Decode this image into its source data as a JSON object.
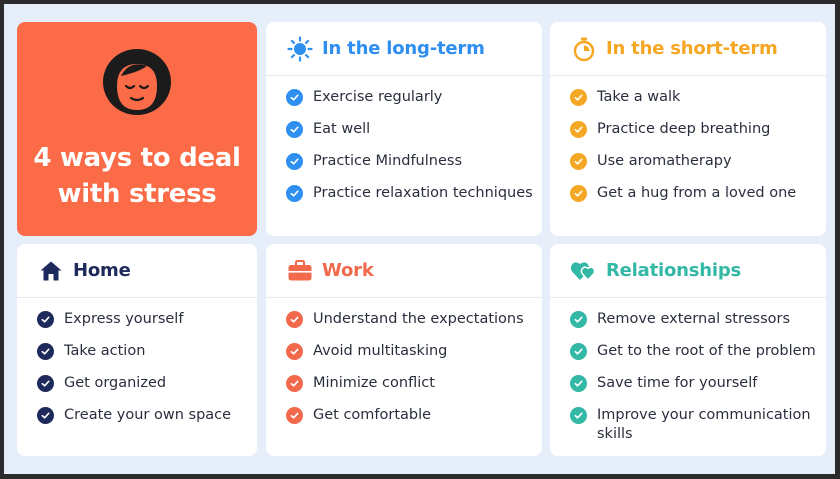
{
  "hero": {
    "title_line1": "4 ways to deal",
    "title_line2": "with stress"
  },
  "colors": {
    "hero_bg": "#fb6b47",
    "long_term": "#2f8ff0",
    "short_term": "#f5a623",
    "home": "#1f2a5c",
    "work": "#f26a4b",
    "relationships": "#33b8a5"
  },
  "long_term": {
    "title": "In the long-term",
    "icon": "sun-icon",
    "items": [
      "Exercise regularly",
      "Eat well",
      "Practice Mindfulness",
      "Practice relaxation techniques"
    ]
  },
  "short_term": {
    "title": "In the short-term",
    "icon": "stopwatch-icon",
    "items": [
      "Take a walk",
      "Practice deep breathing",
      "Use aromatherapy",
      "Get a hug from a loved one"
    ]
  },
  "home": {
    "title": "Home",
    "icon": "house-icon",
    "items": [
      "Express yourself",
      "Take action",
      "Get organized",
      "Create your own space"
    ]
  },
  "work": {
    "title": "Work",
    "icon": "briefcase-icon",
    "items": [
      "Understand the expectations",
      "Avoid multitasking",
      "Minimize conflict",
      "Get comfortable"
    ]
  },
  "relationships": {
    "title": "Relationships",
    "icon": "hearts-icon",
    "items": [
      "Remove external stressors",
      "Get to the root of the problem",
      "Save time for yourself",
      "Improve your communication skills"
    ]
  }
}
